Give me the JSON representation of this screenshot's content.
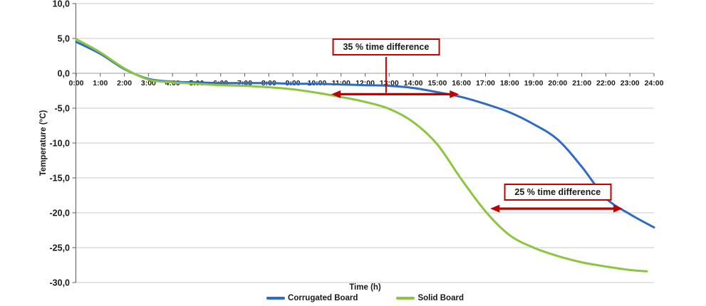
{
  "chart_data": {
    "type": "line",
    "title": "",
    "xlabel": "Time (h)",
    "ylabel": "Temperature (°C)",
    "xlim_hours": [
      0,
      24
    ],
    "ylim": [
      -30,
      10
    ],
    "grid": true,
    "legend_position": "bottom",
    "x_tick_labels": [
      "0:00",
      "1:00",
      "2:00",
      "3:00",
      "4:00",
      "5:00",
      "6:00",
      "7:00",
      "8:00",
      "9:00",
      "10:00",
      "11:00",
      "12:00",
      "13:00",
      "14:00",
      "15:00",
      "16:00",
      "17:00",
      "18:00",
      "19:00",
      "20:00",
      "21:00",
      "22:00",
      "23:00",
      "24:00"
    ],
    "y_tick_values": [
      10,
      5,
      0,
      -5,
      -10,
      -15,
      -20,
      -25,
      -30
    ],
    "y_tick_labels": [
      "10,0",
      "5,0",
      "0,0",
      "-5,0",
      "-10,0",
      "-15,0",
      "-20,0",
      "-25,0",
      "-30,0"
    ],
    "series": [
      {
        "name": "Corrugated Board",
        "color": "#2D6BC4",
        "x": [
          0,
          1,
          2,
          3,
          4,
          5,
          6,
          7,
          8,
          9,
          10,
          11,
          12,
          13,
          14,
          15,
          16,
          17,
          18,
          19,
          20,
          21,
          22,
          23,
          24
        ],
        "values": [
          4.5,
          2.8,
          0.6,
          -0.8,
          -1.2,
          -1.3,
          -1.4,
          -1.4,
          -1.4,
          -1.5,
          -1.5,
          -1.6,
          -1.7,
          -1.8,
          -2.1,
          -2.7,
          -3.4,
          -4.4,
          -5.6,
          -7.3,
          -9.5,
          -13.4,
          -17.9,
          -20.2,
          -22.1
        ]
      },
      {
        "name": "Solid Board",
        "color": "#8CC63F",
        "x": [
          0,
          1,
          2,
          3,
          4,
          5,
          6,
          7,
          8,
          9,
          10,
          11,
          12,
          13,
          14,
          15,
          16,
          17,
          18,
          19,
          20,
          21,
          22,
          23,
          23.7
        ],
        "values": [
          4.9,
          3.0,
          0.7,
          -0.9,
          -1.3,
          -1.5,
          -1.7,
          -1.8,
          -2.0,
          -2.3,
          -2.8,
          -3.4,
          -4.1,
          -5.1,
          -7.0,
          -10.2,
          -15.2,
          -19.8,
          -23.2,
          -25.0,
          -26.2,
          -27.1,
          -27.7,
          -28.2,
          -28.4
        ]
      }
    ],
    "annotations": [
      {
        "label": "35 % time difference",
        "arrow_from_h": 10.6,
        "arrow_to_h": 15.9,
        "arrow_at_temp": -3.0,
        "box_center_h": 12.87,
        "box_top_temp": 5.0,
        "connector": true
      },
      {
        "label": "25 % time difference",
        "arrow_from_h": 17.2,
        "arrow_to_h": 22.7,
        "arrow_at_temp": -19.4,
        "box_center_h": 20.0,
        "box_top_temp": -15.8,
        "connector": false
      }
    ],
    "annotation_color": "#C00000",
    "grid_color": "#C9C9C9",
    "axis_color": "#9C9C9C",
    "tick_color": "#5A5A5A"
  }
}
